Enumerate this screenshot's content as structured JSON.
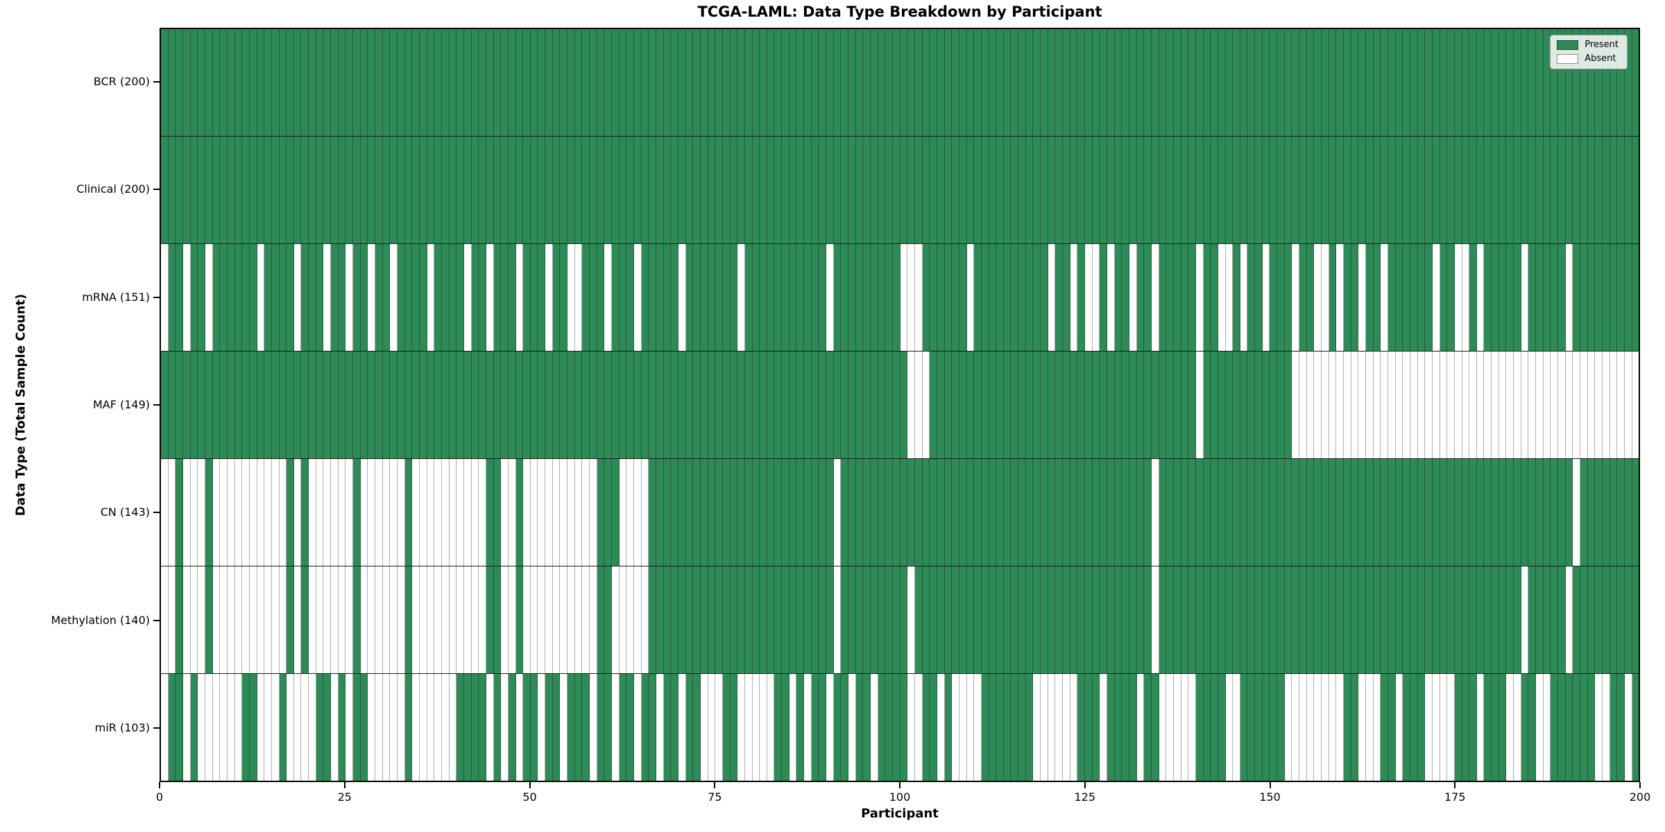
{
  "chart_data": {
    "type": "heatmap",
    "title": "TCGA-LAML: Data Type Breakdown by Participant",
    "xlabel": "Participant",
    "ylabel": "Data Type (Total Sample Count)",
    "n_participants": 200,
    "x_ticks": [
      0,
      25,
      50,
      75,
      100,
      125,
      150,
      175,
      200
    ],
    "grid": false,
    "legend_position": "upper right",
    "colors": {
      "present": "#2e8b57",
      "absent": "#ffffff"
    },
    "legend": [
      {
        "label": "Present",
        "color": "#2e8b57"
      },
      {
        "label": "Absent",
        "color": "#ffffff"
      }
    ],
    "rows": [
      {
        "label": "BCR",
        "total": 200,
        "display": "BCR (200)",
        "absent": []
      },
      {
        "label": "Clinical",
        "total": 200,
        "display": "Clinical (200)",
        "absent": []
      },
      {
        "label": "mRNA",
        "total": 151,
        "display": "mRNA (151)",
        "absent": [
          0,
          3,
          6,
          13,
          18,
          22,
          25,
          28,
          31,
          36,
          41,
          44,
          48,
          52,
          55,
          56,
          60,
          64,
          70,
          78,
          90,
          100,
          101,
          102,
          109,
          120,
          123,
          125,
          126,
          128,
          131,
          134,
          140,
          143,
          144,
          146,
          149,
          153,
          156,
          157,
          159,
          162,
          165,
          172,
          175,
          176,
          178,
          184,
          190
        ]
      },
      {
        "label": "MAF",
        "total": 149,
        "display": "MAF (149)",
        "absent": [
          101,
          102,
          103,
          140,
          153,
          154,
          155,
          156,
          157,
          158,
          159,
          160,
          161,
          162,
          163,
          164,
          165,
          166,
          167,
          168,
          169,
          170,
          171,
          172,
          173,
          174,
          175,
          176,
          177,
          178,
          179,
          180,
          181,
          182,
          183,
          184,
          185,
          186,
          187,
          188,
          189,
          190,
          191,
          192,
          193,
          194,
          195,
          196,
          197,
          198,
          199
        ]
      },
      {
        "label": "CN",
        "total": 143,
        "display": "CN (143)",
        "absent": [
          0,
          1,
          3,
          4,
          5,
          7,
          8,
          9,
          10,
          11,
          12,
          13,
          14,
          15,
          16,
          18,
          20,
          21,
          22,
          23,
          24,
          25,
          27,
          28,
          29,
          30,
          31,
          32,
          34,
          35,
          36,
          37,
          38,
          39,
          40,
          41,
          42,
          43,
          46,
          47,
          49,
          50,
          51,
          52,
          53,
          54,
          55,
          56,
          57,
          58,
          62,
          63,
          64,
          65,
          91,
          134,
          191
        ]
      },
      {
        "label": "Methylation",
        "total": 140,
        "display": "Methylation (140)",
        "absent": [
          0,
          1,
          3,
          4,
          5,
          7,
          8,
          9,
          10,
          11,
          12,
          13,
          14,
          15,
          16,
          18,
          20,
          21,
          22,
          23,
          24,
          25,
          27,
          28,
          29,
          30,
          31,
          32,
          34,
          35,
          36,
          37,
          38,
          39,
          40,
          41,
          42,
          43,
          46,
          47,
          49,
          50,
          51,
          52,
          53,
          54,
          55,
          56,
          57,
          58,
          61,
          62,
          63,
          64,
          65,
          91,
          101,
          134,
          184,
          190
        ]
      },
      {
        "label": "miR",
        "total": 103,
        "display": "miR (103)",
        "absent": [
          0,
          3,
          5,
          6,
          7,
          8,
          9,
          10,
          13,
          14,
          15,
          17,
          18,
          19,
          20,
          23,
          25,
          28,
          29,
          30,
          31,
          32,
          34,
          35,
          36,
          37,
          38,
          39,
          44,
          46,
          48,
          51,
          54,
          58,
          61,
          64,
          67,
          70,
          73,
          74,
          75,
          78,
          79,
          80,
          81,
          82,
          85,
          87,
          90,
          93,
          96,
          101,
          102,
          105,
          107,
          108,
          109,
          110,
          118,
          119,
          120,
          121,
          122,
          123,
          127,
          132,
          135,
          136,
          137,
          138,
          139,
          144,
          145,
          152,
          153,
          154,
          155,
          156,
          157,
          158,
          159,
          162,
          163,
          164,
          167,
          171,
          172,
          173,
          174,
          178,
          182,
          183,
          186,
          187,
          194,
          195,
          198
        ]
      }
    ]
  }
}
